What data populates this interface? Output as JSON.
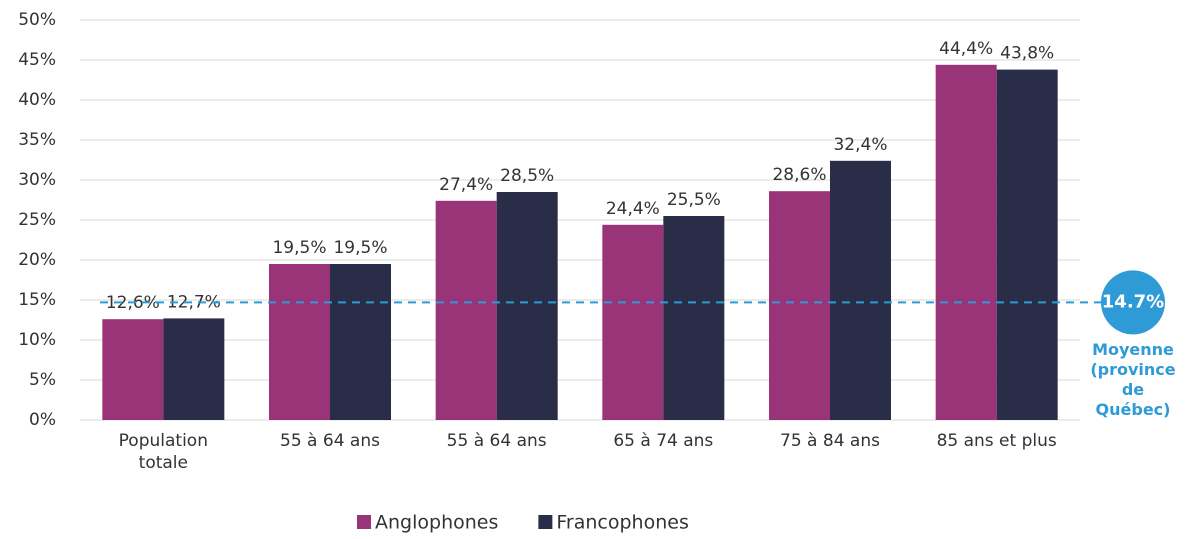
{
  "chart_data": {
    "type": "bar",
    "categories": [
      "Population totale",
      "55 à 64 ans",
      "55 à 64 ans",
      "65 à 74 ans",
      "75 à 84 ans",
      "85 ans et plus"
    ],
    "series": [
      {
        "name": "Anglophones",
        "color": "#993478",
        "values": [
          12.6,
          19.5,
          27.4,
          24.4,
          28.6,
          44.4
        ],
        "value_labels": [
          "12,6%",
          "19,5%",
          "27,4%",
          "24,4%",
          "28,6%",
          "44,4%"
        ]
      },
      {
        "name": "Francophones",
        "color": "#2a2d48",
        "values": [
          12.7,
          19.5,
          28.5,
          25.5,
          32.4,
          43.8
        ],
        "value_labels": [
          "12,7%",
          "19,5%",
          "28,5%",
          "25,5%",
          "32,4%",
          "43,8%"
        ]
      }
    ],
    "ylim": [
      0,
      50
    ],
    "yticks": [
      {
        "value": 0,
        "label": "0%"
      },
      {
        "value": 5,
        "label": "5%"
      },
      {
        "value": 10,
        "label": "10%"
      },
      {
        "value": 15,
        "label": "15%"
      },
      {
        "value": 20,
        "label": "20%"
      },
      {
        "value": 25,
        "label": "25%"
      },
      {
        "value": 30,
        "label": "30%"
      },
      {
        "value": 35,
        "label": "35%"
      },
      {
        "value": 40,
        "label": "40%"
      },
      {
        "value": 45,
        "label": "45%"
      },
      {
        "value": 50,
        "label": "50%"
      }
    ],
    "grid": true,
    "legend": "bottom",
    "reference_line": {
      "value": 14.7,
      "label": "14.7%",
      "text": "Moyenne (province de Québec)",
      "color": "#2e9bd6"
    }
  }
}
